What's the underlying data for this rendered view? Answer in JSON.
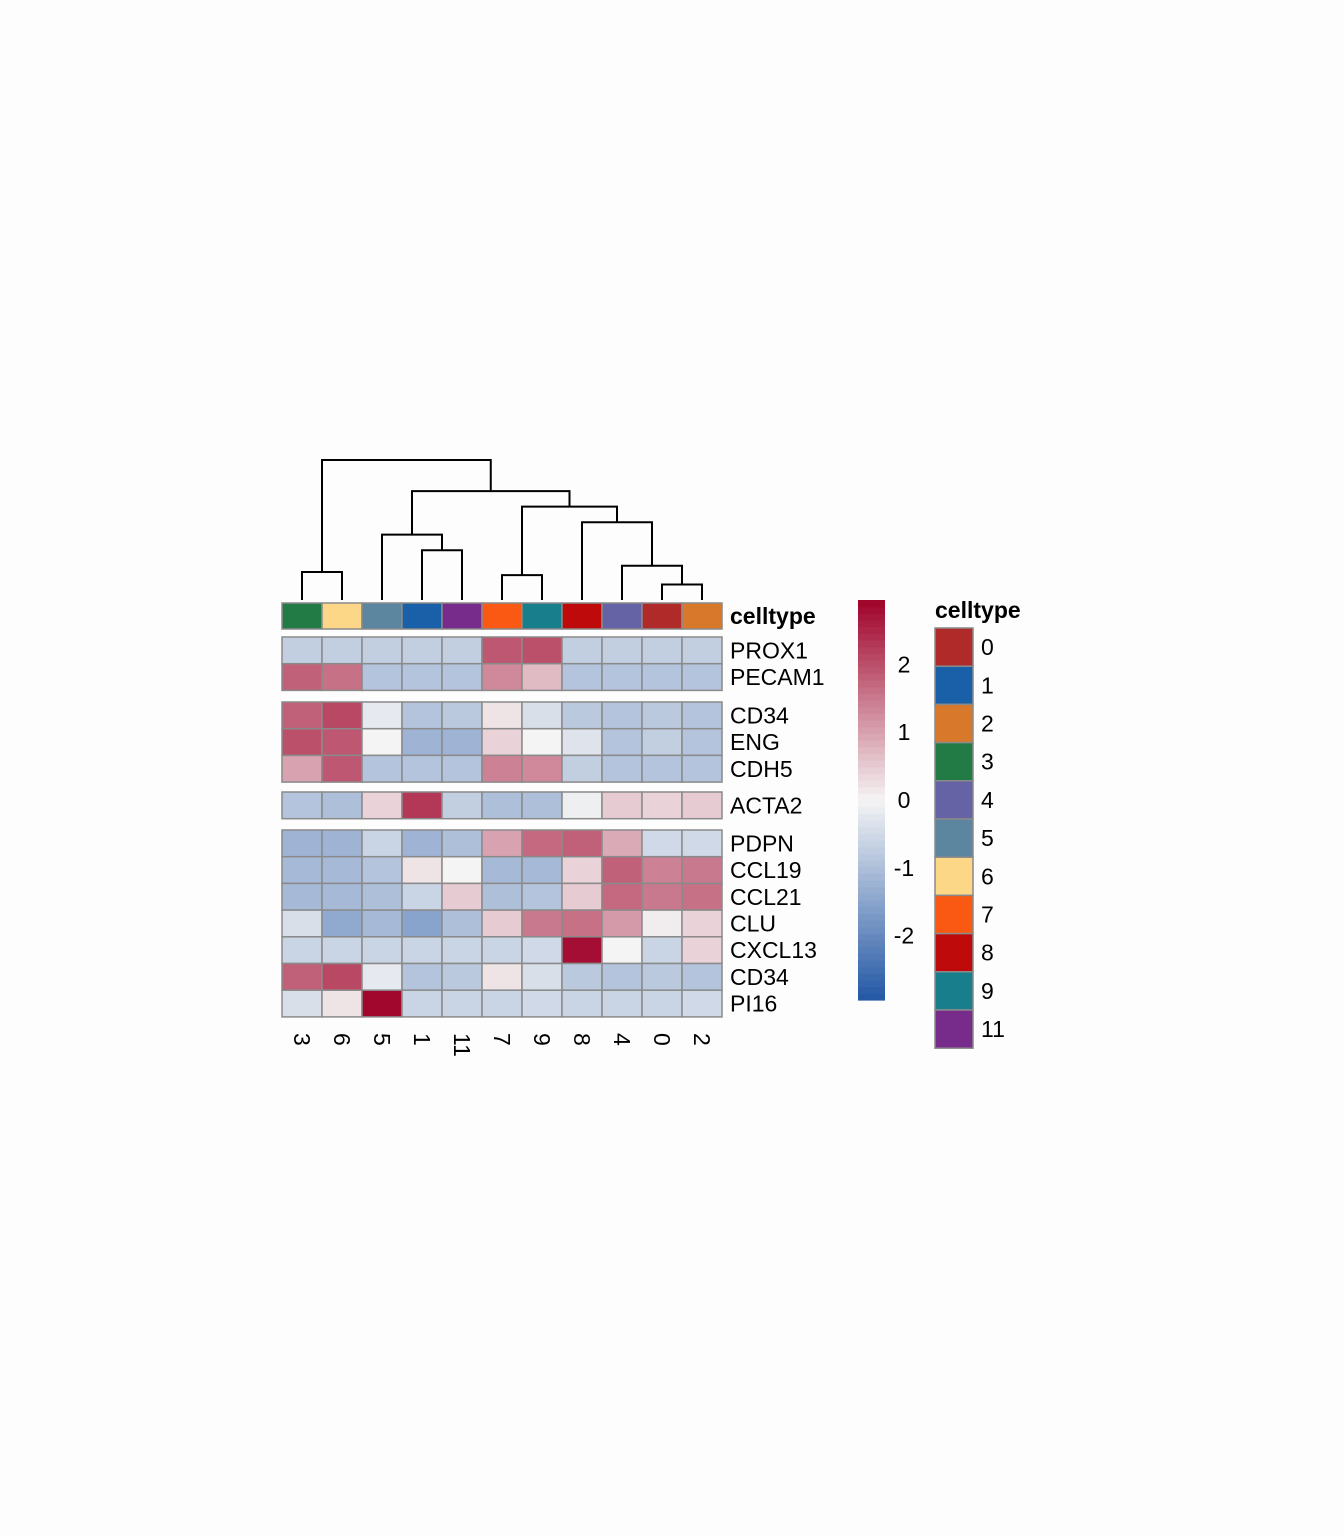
{
  "chart_data": {
    "type": "heatmap",
    "title": "",
    "columns": [
      "3",
      "6",
      "5",
      "1",
      "11",
      "7",
      "9",
      "8",
      "4",
      "0",
      "2"
    ],
    "row_groups": [
      {
        "rows": [
          {
            "label": "PROX1",
            "values": [
              -0.7,
              -0.7,
              -0.7,
              -0.7,
              -0.7,
              1.9,
              2.0,
              -0.7,
              -0.7,
              -0.7,
              -0.7
            ]
          },
          {
            "label": "PECAM1",
            "values": [
              1.8,
              1.6,
              -0.9,
              -0.9,
              -0.9,
              1.3,
              0.7,
              -0.9,
              -0.9,
              -0.9,
              -0.9
            ]
          }
        ]
      },
      {
        "rows": [
          {
            "label": "CD34",
            "values": [
              1.8,
              2.1,
              -0.2,
              -0.9,
              -0.8,
              0.2,
              -0.4,
              -0.8,
              -0.9,
              -0.8,
              -0.9
            ]
          },
          {
            "label": "ENG",
            "values": [
              2.0,
              1.9,
              0.0,
              -1.2,
              -1.2,
              0.4,
              0.0,
              -0.3,
              -0.9,
              -0.7,
              -0.9
            ]
          },
          {
            "label": "CDH5",
            "values": [
              1.0,
              1.9,
              -0.9,
              -0.9,
              -0.9,
              1.4,
              1.3,
              -0.7,
              -0.9,
              -0.9,
              -0.9
            ]
          }
        ]
      },
      {
        "rows": [
          {
            "label": "ACTA2",
            "values": [
              -0.9,
              -1.0,
              0.4,
              2.3,
              -0.7,
              -1.0,
              -1.0,
              -0.1,
              0.5,
              0.4,
              0.5
            ]
          }
        ]
      },
      {
        "rows": [
          {
            "label": "PDPN",
            "values": [
              -1.2,
              -1.2,
              -0.6,
              -1.2,
              -1.0,
              1.0,
              1.7,
              1.8,
              0.9,
              -0.5,
              -0.5
            ]
          },
          {
            "label": "CCL19",
            "values": [
              -1.1,
              -1.1,
              -0.9,
              0.2,
              0.0,
              -1.1,
              -1.1,
              0.4,
              1.8,
              1.4,
              1.5
            ]
          },
          {
            "label": "CCL21",
            "values": [
              -1.1,
              -1.1,
              -1.0,
              -0.6,
              0.5,
              -1.0,
              -0.9,
              0.5,
              1.7,
              1.5,
              1.6
            ]
          },
          {
            "label": "CLU",
            "values": [
              -0.4,
              -1.4,
              -1.1,
              -1.5,
              -1.0,
              0.5,
              1.5,
              1.6,
              1.1,
              0.1,
              0.4
            ]
          },
          {
            "label": "CXCL13",
            "values": [
              -0.6,
              -0.6,
              -0.6,
              -0.6,
              -0.6,
              -0.6,
              -0.5,
              2.8,
              0.0,
              -0.6,
              0.4
            ]
          },
          {
            "label": "CD34",
            "values": [
              1.8,
              2.1,
              -0.2,
              -0.9,
              -0.8,
              0.2,
              -0.4,
              -0.8,
              -0.9,
              -0.8,
              -0.9
            ]
          },
          {
            "label": "PI16",
            "values": [
              -0.4,
              0.2,
              2.9,
              -0.6,
              -0.6,
              -0.6,
              -0.5,
              -0.6,
              -0.6,
              -0.6,
              -0.5
            ]
          }
        ]
      }
    ],
    "annotation": {
      "title": "celltype",
      "values": [
        "3",
        "6",
        "5",
        "1",
        "11",
        "7",
        "9",
        "8",
        "4",
        "0",
        "2"
      ]
    },
    "legend": {
      "title": "celltype",
      "levels": [
        "0",
        "1",
        "2",
        "3",
        "4",
        "5",
        "6",
        "7",
        "8",
        "9",
        "11"
      ],
      "colors": {
        "0": "#b02a2a",
        "1": "#1a60a8",
        "2": "#d8782a",
        "3": "#227a44",
        "4": "#6562a5",
        "5": "#5c86a0",
        "6": "#fcd788",
        "7": "#fa5913",
        "8": "#bf0a0b",
        "9": "#187e8c",
        "11": "#772b8a"
      }
    },
    "colorbar": {
      "range": [
        -2.95,
        2.95
      ],
      "ticks": [
        -2,
        -1,
        0,
        1,
        2
      ],
      "low_color": "#2257a5",
      "mid_color": "#f4f4f4",
      "high_color": "#a0022a"
    },
    "dendrogram": {
      "merges": [
        [
          0,
          1,
          0.18
        ],
        [
          9,
          10,
          0.1
        ],
        [
          8,
          "n1",
          0.22
        ],
        [
          3,
          4,
          0.32
        ],
        [
          5,
          6,
          0.16
        ],
        [
          7,
          "n2",
          0.5
        ],
        [
          2,
          "n3",
          0.42
        ],
        [
          "n4",
          "n5",
          0.6
        ],
        [
          "n6",
          "n7",
          0.7
        ],
        [
          "n0",
          "n8",
          0.9
        ]
      ]
    }
  }
}
